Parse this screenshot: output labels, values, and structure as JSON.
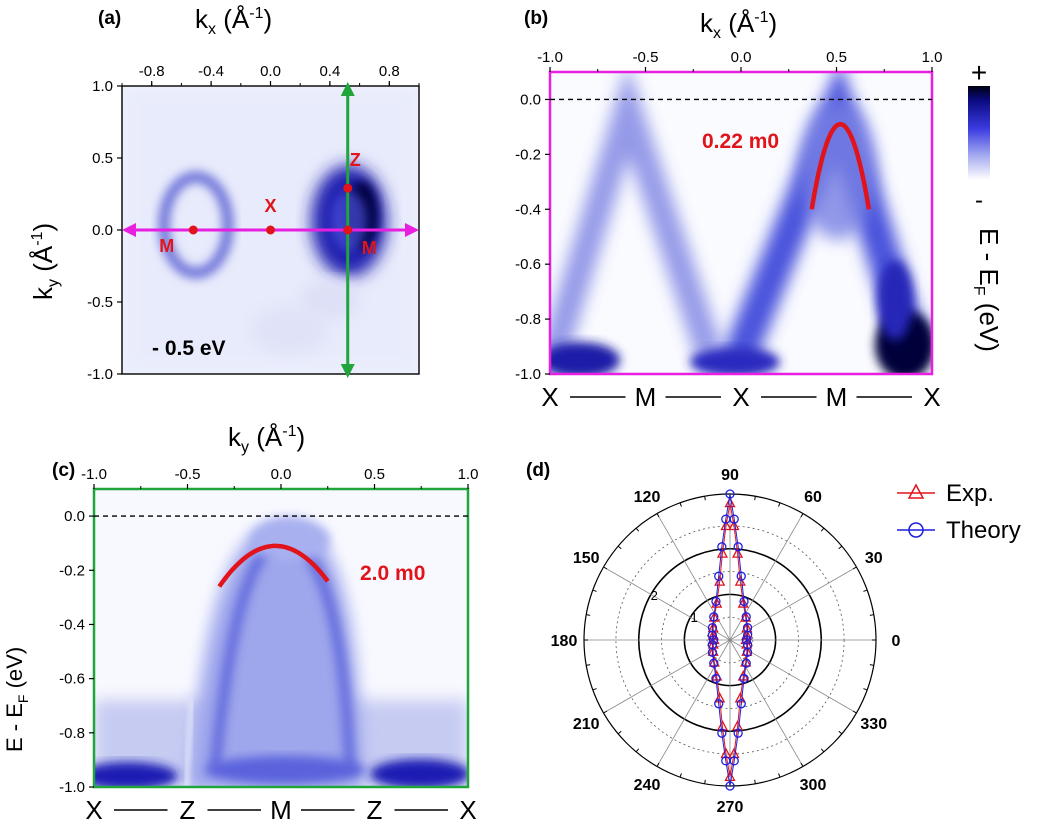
{
  "chart_data": [
    {
      "panel": "(a)",
      "type": "heatmap",
      "xlabel": "k_x (Å^-1)",
      "ylabel": "k_y (Å^-1)",
      "xlim": [
        -1.0,
        1.0
      ],
      "ylim": [
        -1.0,
        1.0
      ],
      "x_ticks": [
        "-0.8",
        "-0.4",
        "0.0",
        "0.4",
        "0.8"
      ],
      "y_ticks": [
        "1.0",
        "0.5",
        "0.0",
        "-0.5",
        "-1.0"
      ],
      "annotation": "- 0.5 eV",
      "points": [
        {
          "label": "M",
          "x": -0.52,
          "y": 0.0
        },
        {
          "label": "X",
          "x": 0.0,
          "y": 0.0
        },
        {
          "label": "M",
          "x": 0.52,
          "y": 0.0
        },
        {
          "label": "Z",
          "x": 0.52,
          "y": 0.29
        }
      ],
      "cut_lines": [
        {
          "direction": "horizontal",
          "color": "#e81ee0",
          "ky": 0.0
        },
        {
          "direction": "vertical",
          "color": "#1fa53a",
          "kx": 0.52
        }
      ]
    },
    {
      "panel": "(b)",
      "type": "heatmap",
      "xlabel": "k_x (Å^-1)",
      "ylabel": "E - E_F (eV)",
      "xlim": [
        -1.0,
        1.0
      ],
      "ylim": [
        -1.0,
        0.1
      ],
      "x_ticks": [
        "-1.0",
        "-0.5",
        "0.0",
        "0.5",
        "1.0"
      ],
      "y_ticks": [
        "0.0",
        "-0.2",
        "-0.4",
        "-0.6",
        "-0.8",
        "-1.0"
      ],
      "path_labels": [
        "X",
        "M",
        "X",
        "M",
        "X"
      ],
      "annotation": "0.22 m0",
      "colorbar": {
        "top": "+",
        "bottom": "-"
      },
      "parabola": {
        "vertex_k": 0.52,
        "vertex_E": -0.09,
        "k_range": [
          0.37,
          0.67
        ],
        "E_end": -0.4
      }
    },
    {
      "panel": "(c)",
      "type": "heatmap",
      "xlabel": "k_y (Å^-1)",
      "ylabel": "E - E_F (eV)",
      "xlim": [
        -1.0,
        1.0
      ],
      "ylim": [
        -1.0,
        0.1
      ],
      "x_ticks": [
        "-1.0",
        "-0.5",
        "0.0",
        "0.5",
        "1.0"
      ],
      "y_ticks": [
        "0.0",
        "-0.2",
        "-0.4",
        "-0.6",
        "-0.8",
        "-1.0"
      ],
      "path_labels": [
        "X",
        "Z",
        "M",
        "Z",
        "X"
      ],
      "annotation": "2.0 m0",
      "parabola": {
        "vertex_k": -0.03,
        "vertex_E": -0.11,
        "k_range": [
          -0.33,
          0.25
        ],
        "E_end": -0.26
      }
    },
    {
      "panel": "(d)",
      "type": "scatter",
      "coordinate_system": "polar",
      "angle_ticks": [
        "0",
        "30",
        "60",
        "90",
        "120",
        "150",
        "180",
        "210",
        "240",
        "270",
        "300",
        "330"
      ],
      "radial_ticks": [
        "1",
        "2"
      ],
      "rmax": 3.2,
      "series": [
        {
          "name": "Exp.",
          "marker": "triangle",
          "color": "#e0141a",
          "points": [
            {
              "angle": 90,
              "r": 3.0
            },
            {
              "angle": 92,
              "r": 2.5
            },
            {
              "angle": 95,
              "r": 1.9
            },
            {
              "angle": 100,
              "r": 1.3
            },
            {
              "angle": 110,
              "r": 0.85
            },
            {
              "angle": 125,
              "r": 0.6
            },
            {
              "angle": 145,
              "r": 0.45
            },
            {
              "angle": 165,
              "r": 0.38
            },
            {
              "angle": 180,
              "r": 0.35
            },
            {
              "angle": 195,
              "r": 0.38
            },
            {
              "angle": 215,
              "r": 0.45
            },
            {
              "angle": 235,
              "r": 0.6
            },
            {
              "angle": 250,
              "r": 0.85
            },
            {
              "angle": 260,
              "r": 1.3
            },
            {
              "angle": 265,
              "r": 1.9
            },
            {
              "angle": 268,
              "r": 2.5
            },
            {
              "angle": 270,
              "r": 3.0
            },
            {
              "angle": 272,
              "r": 2.5
            },
            {
              "angle": 275,
              "r": 1.9
            },
            {
              "angle": 280,
              "r": 1.3
            },
            {
              "angle": 290,
              "r": 0.85
            },
            {
              "angle": 305,
              "r": 0.6
            },
            {
              "angle": 325,
              "r": 0.45
            },
            {
              "angle": 345,
              "r": 0.38
            },
            {
              "angle": 0,
              "r": 0.35
            },
            {
              "angle": 15,
              "r": 0.38
            },
            {
              "angle": 35,
              "r": 0.45
            },
            {
              "angle": 55,
              "r": 0.6
            },
            {
              "angle": 70,
              "r": 0.85
            },
            {
              "angle": 80,
              "r": 1.3
            },
            {
              "angle": 85,
              "r": 1.9
            },
            {
              "angle": 88,
              "r": 2.5
            }
          ]
        },
        {
          "name": "Theory",
          "marker": "circle",
          "color": "#1d1fe0",
          "points": [
            {
              "angle": 90,
              "r": 3.2
            },
            {
              "angle": 92,
              "r": 2.65
            },
            {
              "angle": 95,
              "r": 2.05
            },
            {
              "angle": 100,
              "r": 1.42
            },
            {
              "angle": 110,
              "r": 0.9
            },
            {
              "angle": 125,
              "r": 0.62
            },
            {
              "angle": 145,
              "r": 0.47
            },
            {
              "angle": 165,
              "r": 0.4
            },
            {
              "angle": 180,
              "r": 0.36
            },
            {
              "angle": 195,
              "r": 0.4
            },
            {
              "angle": 215,
              "r": 0.47
            },
            {
              "angle": 235,
              "r": 0.62
            },
            {
              "angle": 250,
              "r": 0.9
            },
            {
              "angle": 260,
              "r": 1.42
            },
            {
              "angle": 265,
              "r": 2.05
            },
            {
              "angle": 268,
              "r": 2.65
            },
            {
              "angle": 270,
              "r": 3.2
            },
            {
              "angle": 272,
              "r": 2.65
            },
            {
              "angle": 275,
              "r": 2.05
            },
            {
              "angle": 280,
              "r": 1.42
            },
            {
              "angle": 290,
              "r": 0.9
            },
            {
              "angle": 305,
              "r": 0.62
            },
            {
              "angle": 325,
              "r": 0.47
            },
            {
              "angle": 345,
              "r": 0.4
            },
            {
              "angle": 0,
              "r": 0.36
            },
            {
              "angle": 15,
              "r": 0.4
            },
            {
              "angle": 35,
              "r": 0.47
            },
            {
              "angle": 55,
              "r": 0.62
            },
            {
              "angle": 70,
              "r": 0.9
            },
            {
              "angle": 80,
              "r": 1.42
            },
            {
              "angle": 85,
              "r": 2.05
            },
            {
              "angle": 88,
              "r": 2.65
            }
          ]
        }
      ],
      "legend_position": "top-right"
    }
  ]
}
